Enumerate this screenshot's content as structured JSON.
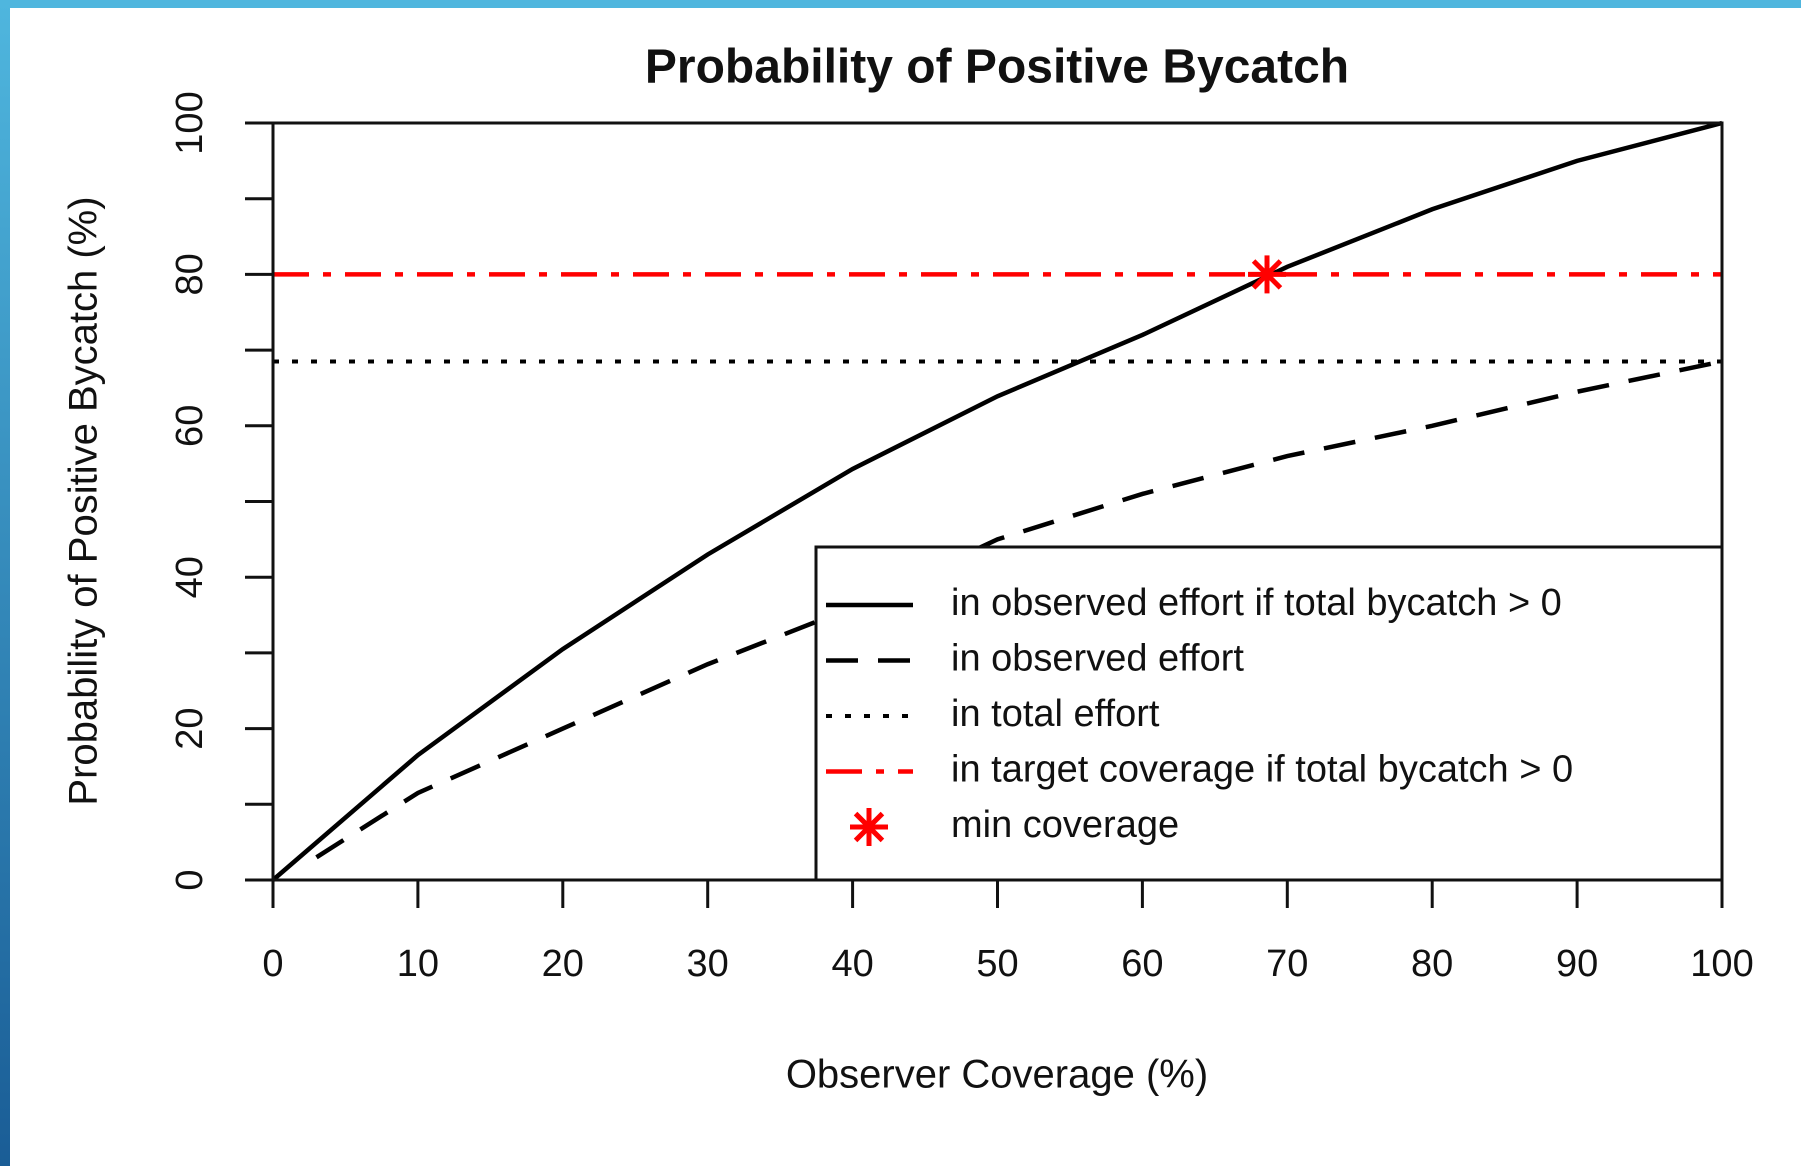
{
  "chart_data": {
    "type": "line",
    "title": "Probability of Positive Bycatch",
    "xlabel": "Observer Coverage (%)",
    "ylabel": "Probability of Positive Bycatch (%)",
    "xlim": [
      0,
      100
    ],
    "xticks": [
      0,
      10,
      20,
      30,
      40,
      50,
      60,
      70,
      80,
      90,
      100
    ],
    "ylim": [
      0,
      100
    ],
    "yticks": [
      0,
      20,
      40,
      60,
      80,
      100
    ],
    "yticks_minor": [
      10,
      30,
      50,
      70,
      90
    ],
    "legend": "bottom-right",
    "series": [
      {
        "name": "in observed effort if total bycatch > 0",
        "color": "#000000",
        "style": "solid",
        "x": [
          0,
          10,
          20,
          30,
          40,
          50,
          60,
          70,
          80,
          90,
          100
        ],
        "values": [
          0,
          16.5,
          30.5,
          43,
          54.3,
          63.9,
          72,
          81,
          88.6,
          95,
          100
        ]
      },
      {
        "name": "in observed effort",
        "color": "#000000",
        "style": "dashed",
        "x": [
          3,
          10,
          20,
          30,
          40,
          50,
          60,
          70,
          80,
          90,
          100
        ],
        "values": [
          3,
          11.5,
          20,
          28.5,
          36,
          45,
          51,
          56,
          60,
          64.5,
          68.5
        ]
      },
      {
        "name": "in total effort",
        "color": "#000000",
        "style": "dotted",
        "x": [
          0,
          100
        ],
        "values": [
          68.5,
          68.5
        ]
      },
      {
        "name": "in target coverage if total bycatch > 0",
        "color": "#ff0000",
        "style": "dashdot",
        "x": [
          0,
          100
        ],
        "values": [
          80,
          80
        ]
      },
      {
        "name": "min coverage",
        "color": "#ff0000",
        "style": "star",
        "x": [
          68.6
        ],
        "values": [
          80
        ]
      }
    ]
  }
}
